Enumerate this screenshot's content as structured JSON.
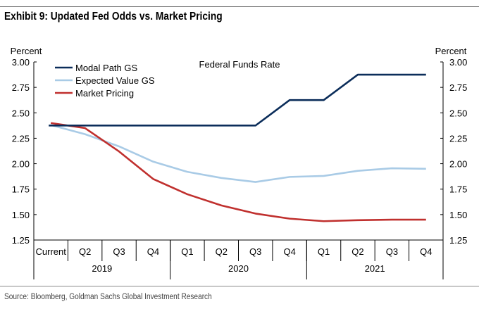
{
  "title": "Exhibit 9: Updated Fed Odds vs. Market Pricing",
  "source": "Source: Bloomberg, Goldman Sachs Global Investment Research",
  "chart_data": {
    "type": "line",
    "annotation": "Federal Funds Rate",
    "ylabel_left": "Percent",
    "ylabel_right": "Percent",
    "ylim": [
      1.25,
      3.0
    ],
    "yticks": [
      "1.25",
      "1.50",
      "1.75",
      "2.00",
      "2.25",
      "2.50",
      "2.75",
      "3.00"
    ],
    "ytick_values": [
      1.25,
      1.5,
      1.75,
      2.0,
      2.25,
      2.5,
      2.75,
      3.0
    ],
    "categories": [
      "Current",
      "Q2",
      "Q3",
      "Q4",
      "Q1",
      "Q2",
      "Q3",
      "Q4",
      "Q1",
      "Q2",
      "Q3",
      "Q4"
    ],
    "years": [
      {
        "label": "2019",
        "start": 0,
        "end": 3
      },
      {
        "label": "2020",
        "start": 4,
        "end": 7
      },
      {
        "label": "2021",
        "start": 8,
        "end": 11
      }
    ],
    "series": [
      {
        "name": "Modal Path GS",
        "color": "#0b2d5a",
        "step": true,
        "values": [
          2.375,
          2.375,
          2.375,
          2.375,
          2.375,
          2.375,
          2.375,
          2.625,
          2.625,
          2.875,
          2.875,
          2.875
        ]
      },
      {
        "name": "Expected Value GS",
        "color": "#a9cbe6",
        "step": false,
        "values": [
          2.38,
          2.29,
          2.17,
          2.02,
          1.92,
          1.86,
          1.82,
          1.87,
          1.88,
          1.93,
          1.955,
          1.95
        ]
      },
      {
        "name": "Market Pricing",
        "color": "#c0302e",
        "step": false,
        "values": [
          2.4,
          2.35,
          2.12,
          1.85,
          1.7,
          1.59,
          1.51,
          1.46,
          1.435,
          1.445,
          1.45,
          1.45
        ]
      }
    ]
  }
}
